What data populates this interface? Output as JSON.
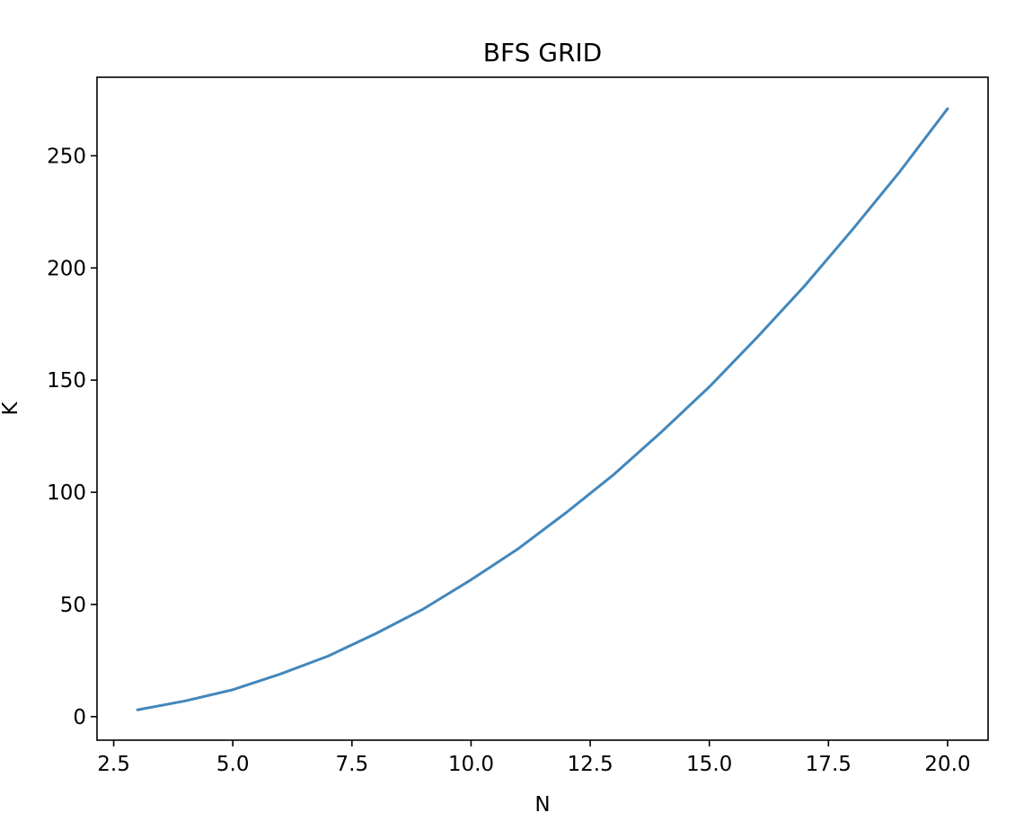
{
  "chart_data": {
    "type": "line",
    "title": "BFS GRID",
    "xlabel": "N",
    "ylabel": "K",
    "xlim": [
      2.15,
      20.85
    ],
    "ylim": [
      -10.5,
      285
    ],
    "x_ticks": [
      2.5,
      5.0,
      7.5,
      10.0,
      12.5,
      15.0,
      17.5,
      20.0
    ],
    "x_tick_labels": [
      "2.5",
      "5.0",
      "7.5",
      "10.0",
      "12.5",
      "15.0",
      "17.5",
      "20.0"
    ],
    "y_ticks": [
      0,
      50,
      100,
      150,
      200,
      250
    ],
    "y_tick_labels": [
      "0",
      "50",
      "100",
      "150",
      "200",
      "250"
    ],
    "grid": false,
    "legend": "none",
    "series": [
      {
        "color": "#4287bb",
        "x": [
          3,
          4,
          5,
          6,
          7,
          8,
          9,
          10,
          11,
          12,
          13,
          14,
          15,
          16,
          17,
          18,
          19,
          20
        ],
        "values": [
          3,
          7,
          12,
          19,
          27,
          37,
          48,
          61,
          75,
          91,
          108,
          127,
          147,
          169,
          192,
          217,
          243,
          271
        ]
      }
    ]
  }
}
